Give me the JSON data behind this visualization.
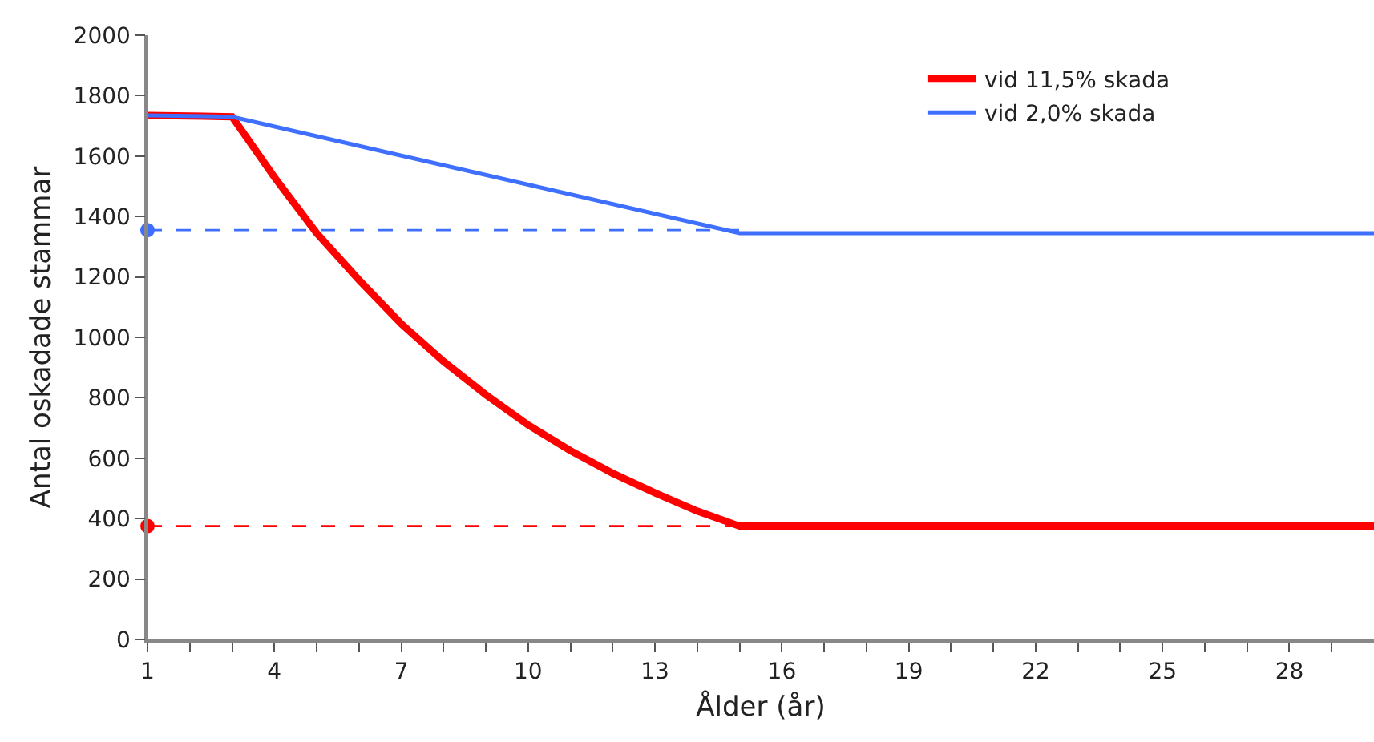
{
  "chart_data": {
    "type": "line",
    "xlabel": "Ålder (år)",
    "ylabel": "Antal oskadade stammar",
    "series": [
      {
        "name": "vid 11,5% skada",
        "color": "#ff0000",
        "x": [
          1,
          2,
          3,
          4,
          5,
          6,
          7,
          8,
          9,
          10,
          11,
          12,
          13,
          14,
          15,
          16,
          17,
          18,
          19,
          20,
          21,
          22,
          23,
          24,
          25,
          26,
          27,
          28,
          29,
          30
        ],
        "values": [
          1735,
          1733,
          1730,
          1530,
          1345,
          1190,
          1045,
          920,
          810,
          710,
          625,
          550,
          485,
          425,
          375,
          375,
          375,
          375,
          375,
          375,
          375,
          375,
          375,
          375,
          375,
          375,
          375,
          375,
          375,
          375
        ]
      },
      {
        "name": "vid 2,0% skada",
        "color": "#3f6fff",
        "x": [
          1,
          2,
          3,
          15,
          16,
          17,
          18,
          19,
          20,
          21,
          22,
          23,
          24,
          25,
          26,
          27,
          28,
          29,
          30
        ],
        "values": [
          1735,
          1733,
          1730,
          1345,
          1345,
          1345,
          1345,
          1345,
          1345,
          1345,
          1345,
          1345,
          1345,
          1345,
          1345,
          1345,
          1345,
          1345,
          1345
        ]
      },
      {
        "color": "#3f6fff",
        "x": [
          1,
          15
        ],
        "values": [
          1355,
          1355
        ],
        "line_style": "dashed"
      },
      {
        "color": "#ff0000",
        "x": [
          1,
          15
        ],
        "values": [
          375,
          375
        ],
        "line_style": "dashed"
      },
      {
        "type": "scatter",
        "marker": "circle",
        "color": "#3f6fff",
        "x": [
          1
        ],
        "values": [
          1355
        ]
      },
      {
        "type": "scatter",
        "marker": "circle",
        "color": "#ff0000",
        "x": [
          1
        ],
        "values": [
          375
        ]
      }
    ],
    "xlim": [
      1,
      30
    ],
    "xticks": [
      1,
      {
        "value": 2,
        "label": null
      },
      {
        "value": 3,
        "label": null
      },
      4,
      {
        "value": 5,
        "label": null
      },
      {
        "value": 6,
        "label": null
      },
      7,
      {
        "value": 8,
        "label": null
      },
      {
        "value": 9,
        "label": null
      },
      10,
      {
        "value": 11,
        "label": null
      },
      {
        "value": 12,
        "label": null
      },
      13,
      {
        "value": 14,
        "label": null
      },
      {
        "value": 15,
        "label": null
      },
      16,
      {
        "value": 17,
        "label": null
      },
      {
        "value": 18,
        "label": null
      },
      19,
      {
        "value": 20,
        "label": null
      },
      {
        "value": 21,
        "label": null
      },
      22,
      {
        "value": 23,
        "label": null
      },
      {
        "value": 24,
        "label": null
      },
      25,
      {
        "value": 26,
        "label": null
      },
      {
        "value": 27,
        "label": null
      },
      28,
      {
        "value": 29,
        "label": null
      }
    ],
    "ylim": [
      0,
      2000
    ],
    "yticks": [
      0,
      200,
      400,
      600,
      800,
      1000,
      1200,
      1400,
      1600,
      1800,
      2000
    ],
    "legend": "top right",
    "line_style": "solid",
    "marker": "none"
  }
}
